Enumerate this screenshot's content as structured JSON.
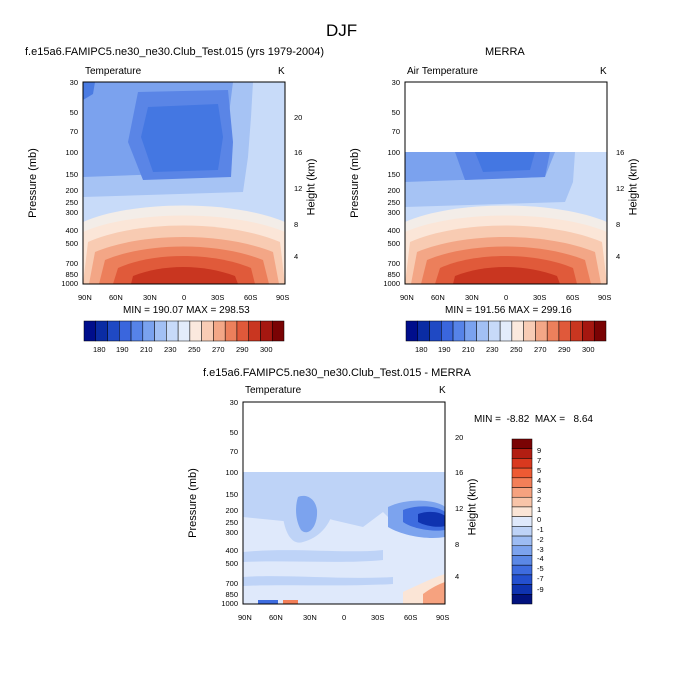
{
  "page": {
    "title": "DJF"
  },
  "panels": {
    "model": {
      "title": "f.e15a6.FAMIPC5.ne30_ne30.Club_Test.015 (yrs 1979-2004)",
      "variable": "Temperature",
      "units": "K",
      "stats": "MIN = 190.07  MAX = 298.53"
    },
    "obs": {
      "title": "MERRA",
      "variable": "Air Temperature",
      "units": "K",
      "stats": "MIN = 191.56  MAX = 299.16"
    },
    "diff": {
      "title": "f.e15a6.FAMIPC5.ne30_ne30.Club_Test.015 - MERRA",
      "variable": "Temperature",
      "units": "K",
      "stats": "MIN =  -8.82  MAX =   8.64"
    }
  },
  "chart_data": {
    "type": "heatmap",
    "title": "DJF",
    "xlabel": "",
    "ylabel": "Pressure (mb)",
    "ylabel_right": "Height (km)",
    "x_ticks": [
      "90N",
      "60N",
      "30N",
      "0",
      "30S",
      "60S",
      "90S"
    ],
    "y_ticks": [
      30,
      50,
      70,
      100,
      150,
      200,
      250,
      300,
      400,
      500,
      700,
      850,
      1000
    ],
    "height_ticks": [
      4,
      8,
      12,
      16,
      20
    ],
    "obs_top_pressure": 100,
    "colorbar_main": {
      "tick_labels": [
        "180",
        "190",
        "210",
        "230",
        "250",
        "270",
        "290",
        "300"
      ],
      "colors": [
        "#000e8c",
        "#0a2ca4",
        "#1f49c4",
        "#3a66dd",
        "#5683e8",
        "#7aa2ef",
        "#a2c0f4",
        "#c7daf9",
        "#e3ecfb",
        "#fbe9de",
        "#f8ccb5",
        "#f3a787",
        "#ec805c",
        "#e0593a",
        "#c93620",
        "#a51710",
        "#7a0304"
      ]
    },
    "colorbar_diff": {
      "tick_labels": [
        "9",
        "7",
        "5",
        "4",
        "3",
        "2",
        "1",
        "0",
        "-1",
        "-2",
        "-3",
        "-4",
        "-5",
        "-7",
        "-9"
      ],
      "colors": [
        "#7a0304",
        "#b21e12",
        "#d9391f",
        "#ee5a33",
        "#f37f58",
        "#f6a27f",
        "#f8c4a8",
        "#fbe5d6",
        "#dfe9fb",
        "#bed3f7",
        "#9dbcf3",
        "#7ca3ee",
        "#5b88e6",
        "#3e6cdf",
        "#2450cf",
        "#0f33b0",
        "#02127e"
      ]
    }
  }
}
